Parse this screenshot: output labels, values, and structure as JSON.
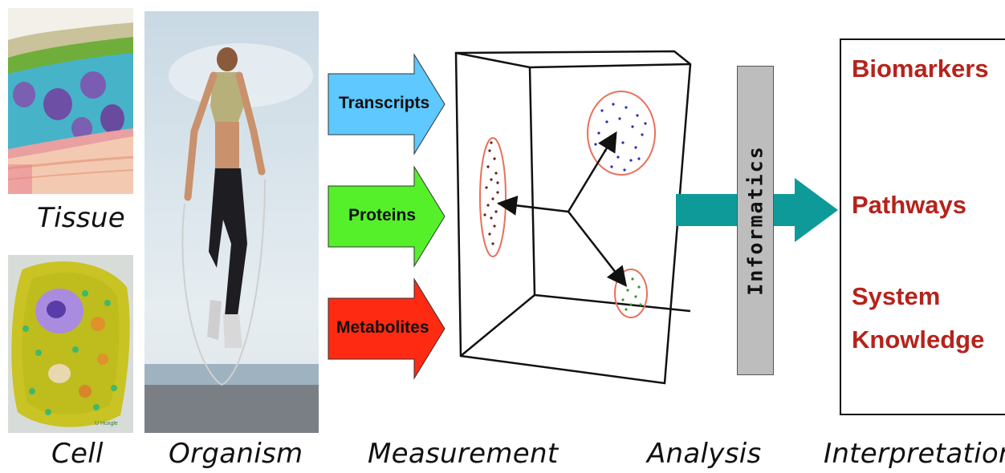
{
  "captions": {
    "tissue": "Tissue",
    "cell": "Cell",
    "organism": "Organism",
    "measurement": "Measurement",
    "analysis": "Analysis",
    "interpretation": "Interpretation"
  },
  "omics_arrows": [
    {
      "label": "Transcripts",
      "color": "#5ec8ff"
    },
    {
      "label": "Proteins",
      "color": "#55f02a"
    },
    {
      "label": "Metabolites",
      "color": "#ff2a12"
    }
  ],
  "informatics": {
    "label": "Informatics",
    "bar_color": "#bdbdbd",
    "arrow_color": "#0f9a9a"
  },
  "interpretation_items": {
    "biomarkers": "Biomarkers",
    "pathways": "Pathways",
    "system_knowledge": [
      "System",
      "Knowledge"
    ]
  },
  "cluster_colors": {
    "left": "#6b1a1a",
    "top": "#2a2ab5",
    "bottom": "#2f9a2f",
    "ellipse": "#e8705a"
  },
  "micro_watermark": "U Huxgle"
}
